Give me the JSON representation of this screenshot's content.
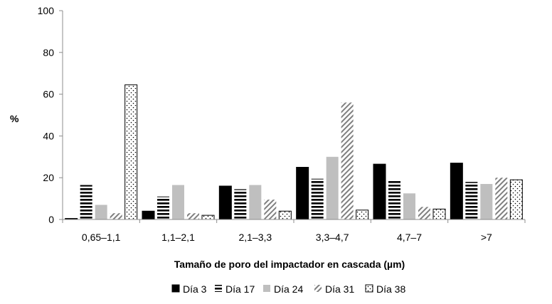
{
  "chart_data": {
    "type": "bar",
    "categories": [
      "0,65–1,1",
      "1,1–2,1",
      "2,1–3,3",
      "3,3–4,7",
      "4,7–7",
      ">7"
    ],
    "series": [
      {
        "name": "Día 3",
        "pattern": "solid",
        "values": [
          0.5,
          4,
          16,
          25,
          26.5,
          27
        ]
      },
      {
        "name": "Día 17",
        "pattern": "hstripes",
        "values": [
          16.5,
          11,
          14.5,
          19.5,
          18.5,
          18
        ]
      },
      {
        "name": "Día 24",
        "pattern": "gray",
        "values": [
          7,
          16.5,
          16.5,
          30,
          12.5,
          17
        ]
      },
      {
        "name": "Día 31",
        "pattern": "diagonal",
        "values": [
          3,
          3,
          9.5,
          56,
          6,
          20
        ]
      },
      {
        "name": "Día 38",
        "pattern": "dotted",
        "values": [
          64.5,
          2,
          4,
          4.5,
          5,
          19
        ]
      }
    ],
    "title": "",
    "xlabel": "Tamaño de poro del impactador  en cascada  (µm)",
    "ylabel": "%",
    "ylim": [
      0,
      100
    ],
    "yticks": [
      "0",
      "20",
      "40",
      "60",
      "80",
      "100"
    ],
    "grid": false,
    "legend_position": "bottom"
  }
}
